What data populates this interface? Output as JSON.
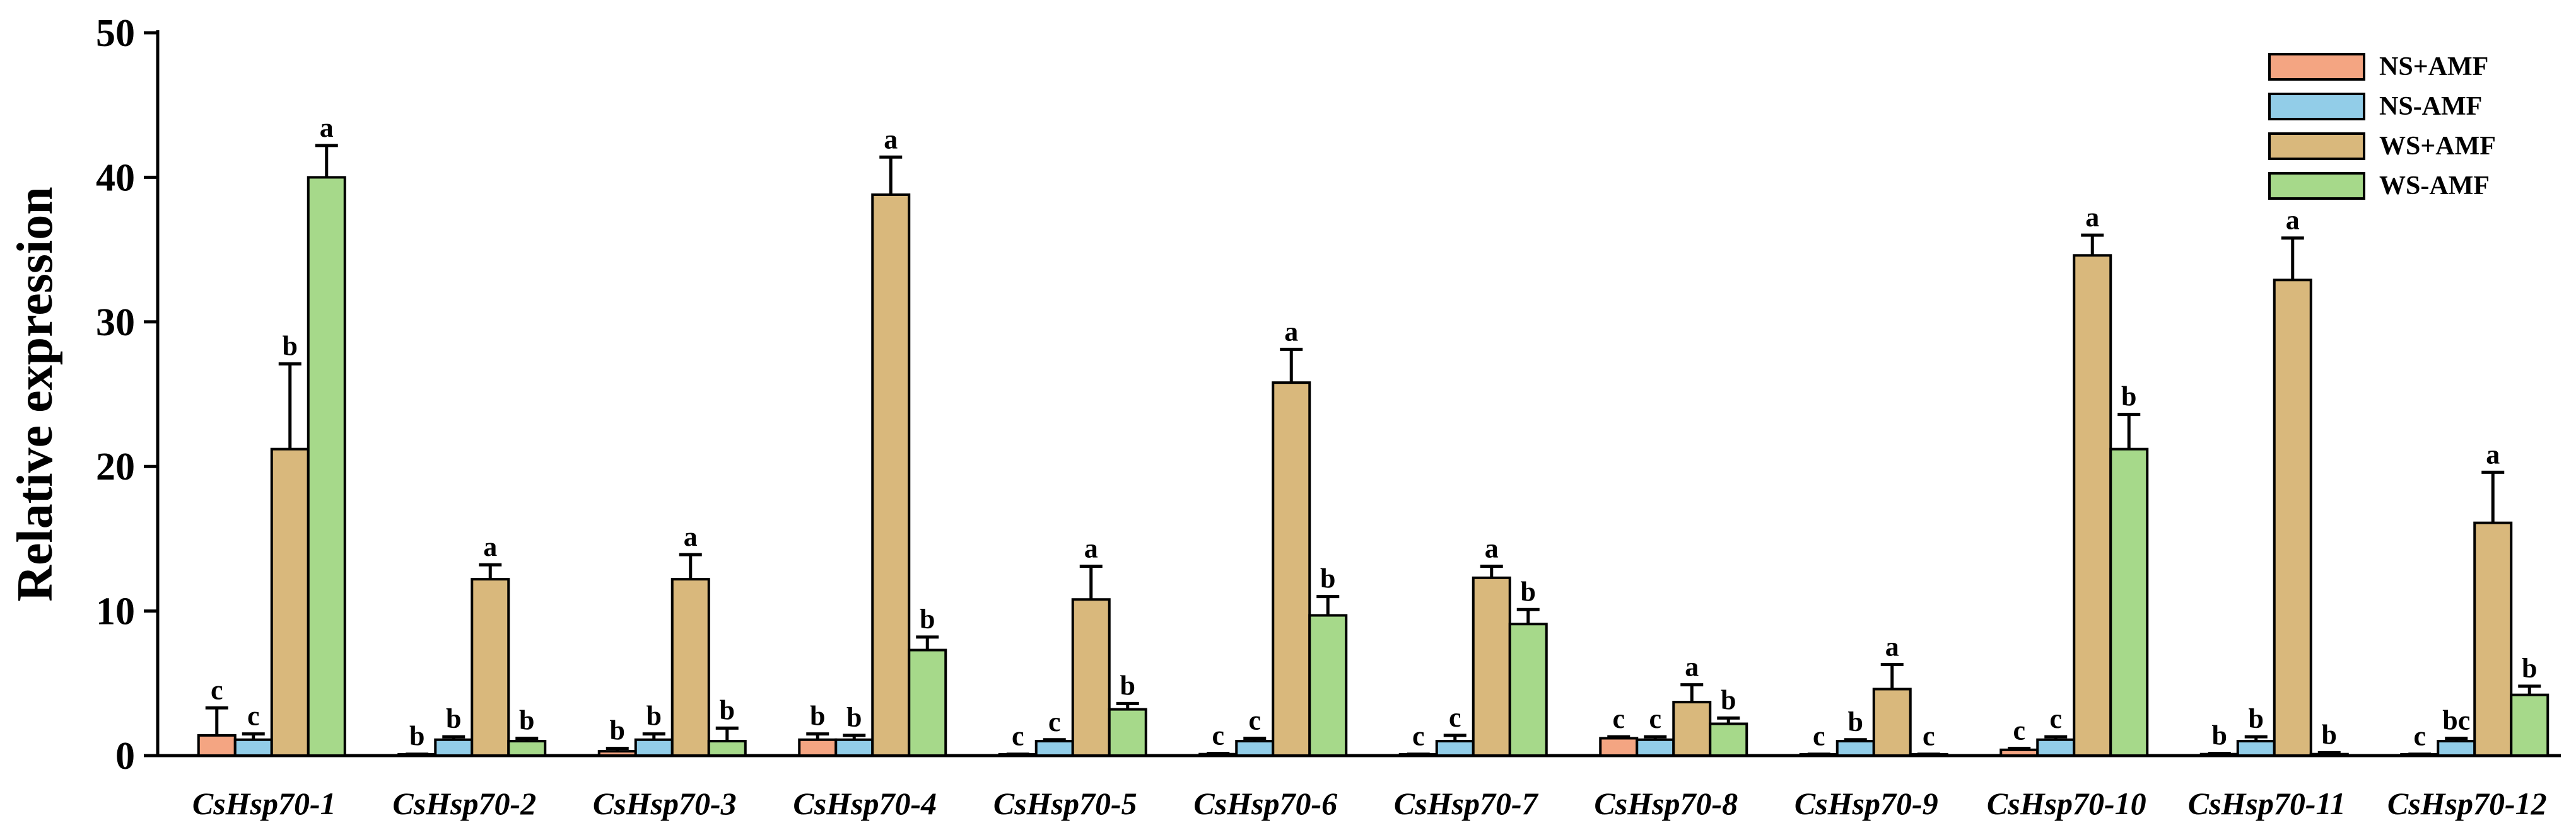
{
  "chart_data": {
    "type": "bar",
    "title": "",
    "xlabel": "",
    "ylabel": "Relative expression",
    "ylim": [
      0,
      50
    ],
    "yticks": [
      0,
      10,
      20,
      30,
      40,
      50
    ],
    "grid": false,
    "legend_position": "top-right",
    "categories": [
      "CsHsp70-1",
      "CsHsp70-2",
      "CsHsp70-3",
      "CsHsp70-4",
      "CsHsp70-5",
      "CsHsp70-6",
      "CsHsp70-7",
      "CsHsp70-8",
      "CsHsp70-9",
      "CsHsp70-10",
      "CsHsp70-11",
      "CsHsp70-12"
    ],
    "series": [
      {
        "name": "NS+AMF",
        "color": "#F4A582",
        "values": [
          1.4,
          0.05,
          0.3,
          1.1,
          0.05,
          0.1,
          0.05,
          1.2,
          0.05,
          0.4,
          0.1,
          0.05
        ],
        "errors": [
          1.9,
          0.05,
          0.2,
          0.4,
          0.05,
          0.05,
          0.05,
          0.1,
          0.05,
          0.1,
          0.05,
          0.05
        ],
        "labels": [
          "c",
          "b",
          "b",
          "b",
          "c",
          "c",
          "c",
          "c",
          "c",
          "c",
          "b",
          "c"
        ]
      },
      {
        "name": "NS-AMF",
        "color": "#92CDE8",
        "values": [
          1.1,
          1.1,
          1.1,
          1.1,
          1.0,
          1.0,
          1.0,
          1.1,
          1.0,
          1.1,
          1.0,
          1.0
        ],
        "errors": [
          0.4,
          0.2,
          0.4,
          0.3,
          0.1,
          0.2,
          0.4,
          0.2,
          0.1,
          0.2,
          0.3,
          0.2
        ],
        "labels": [
          "c",
          "b",
          "b",
          "b",
          "c",
          "c",
          "c",
          "c",
          "b",
          "c",
          "b",
          "bc"
        ]
      },
      {
        "name": "WS+AMF",
        "color": "#D9B87C",
        "values": [
          21.2,
          12.2,
          12.2,
          38.8,
          10.8,
          25.8,
          12.3,
          3.7,
          4.6,
          34.6,
          32.9,
          16.1
        ],
        "errors": [
          5.9,
          1.0,
          1.7,
          2.6,
          2.3,
          2.3,
          0.8,
          1.2,
          1.7,
          1.4,
          2.9,
          3.5
        ],
        "labels": [
          "b",
          "a",
          "a",
          "a",
          "a",
          "a",
          "a",
          "a",
          "a",
          "a",
          "a",
          "a"
        ]
      },
      {
        "name": "WS-AMF",
        "color": "#A6D98A",
        "values": [
          40.0,
          1.0,
          1.0,
          7.3,
          3.2,
          9.7,
          9.1,
          2.2,
          0.05,
          21.2,
          0.1,
          4.2
        ],
        "errors": [
          2.2,
          0.2,
          0.9,
          0.9,
          0.4,
          1.3,
          1.0,
          0.4,
          0.05,
          2.4,
          0.1,
          0.6
        ],
        "labels": [
          "a",
          "b",
          "b",
          "b",
          "b",
          "b",
          "b",
          "b",
          "c",
          "b",
          "b",
          "b"
        ]
      }
    ]
  }
}
